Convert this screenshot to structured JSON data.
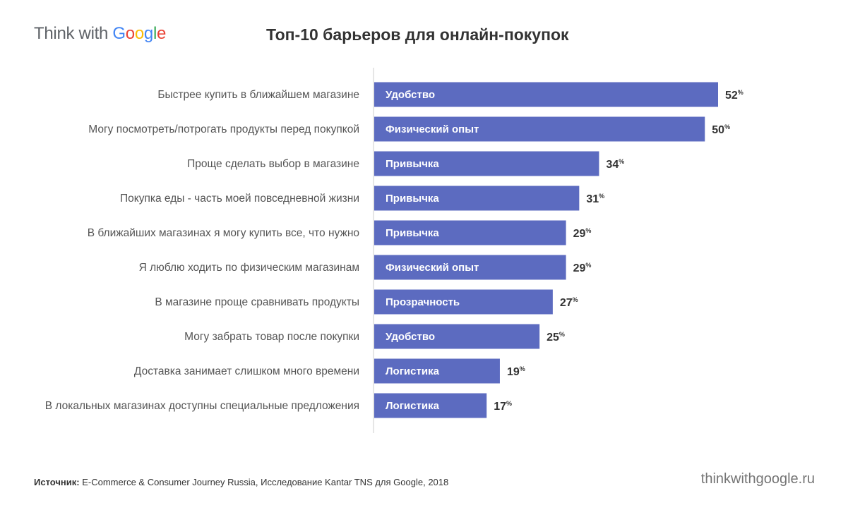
{
  "logo": {
    "think": "Think with",
    "google": [
      "G",
      "o",
      "o",
      "g",
      "l",
      "e"
    ]
  },
  "colors": {
    "bar": "#5c6bc0",
    "axis": "#cccccc",
    "text": "#555555"
  },
  "chart_data": {
    "type": "bar",
    "orientation": "horizontal",
    "title": "Топ-10 барьеров для онлайн-покупок",
    "xlim": [
      0,
      52
    ],
    "value_suffix": "%",
    "categories": [
      "Быстрее купить в ближайшем магазине",
      "Могу посмотреть/потрогать продукты перед покупкой",
      "Проще сделать выбор в магазине",
      "Покупка еды - часть моей повседневной жизни",
      "В ближайших магазинах я могу купить все, что нужно",
      "Я люблю ходить по физическим магазинам",
      "В магазине проще сравнивать продукты",
      "Могу забрать товар после покупки",
      "Доставка занимает слишком много времени",
      "В локальных магазинах доступны специальные предложения"
    ],
    "values": [
      52,
      50,
      34,
      31,
      29,
      29,
      27,
      25,
      19,
      17
    ],
    "bar_labels": [
      "Удобство",
      "Физический опыт",
      "Привычка",
      "Привычка",
      "Привычка",
      "Физический опыт",
      "Прозрачность",
      "Удобство",
      "Логистика",
      "Логистика"
    ]
  },
  "footer": {
    "source_label": "Источник:",
    "source_text": " E-Commerce & Consumer Journey Russia, Исследование Kantar TNS для Google, 2018",
    "site": "thinkwithgoogle.ru"
  }
}
